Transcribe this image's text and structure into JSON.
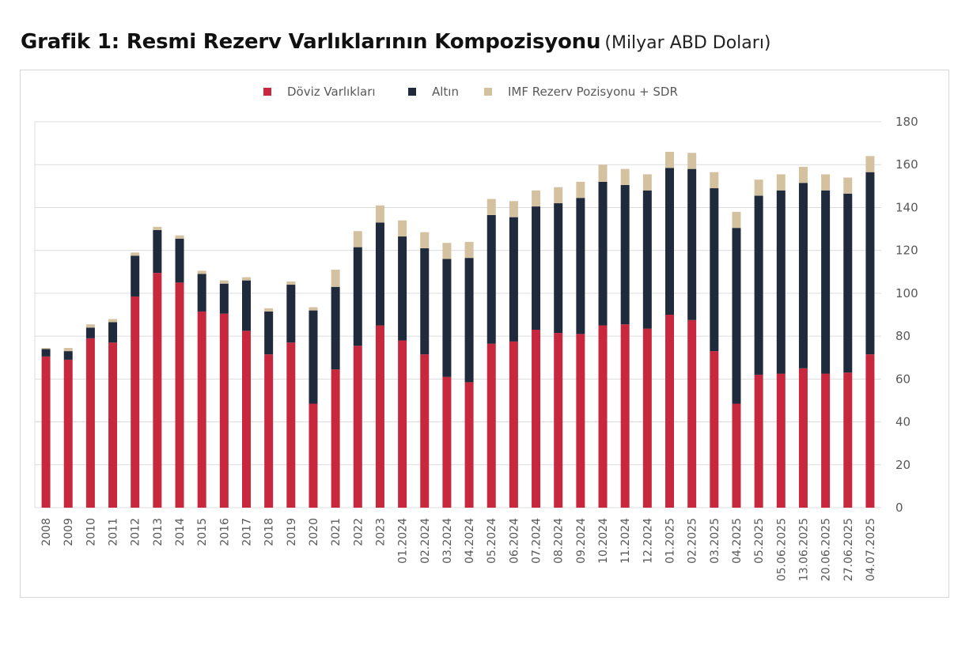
{
  "title": {
    "main": "Grafik 1: Resmi Rezerv Varlıklarının Kompozisyonu",
    "unit": "(Milyar ABD Doları)"
  },
  "chart_data": {
    "type": "bar",
    "stacked": true,
    "title": "Grafik 1: Resmi Rezerv Varlıklarının Kompozisyonu",
    "subtitle": "(Milyar ABD Doları)",
    "y_axis_position": "right",
    "ylim": [
      0,
      180
    ],
    "yticks": [
      0,
      20,
      40,
      60,
      80,
      100,
      120,
      140,
      160,
      180
    ],
    "grid": true,
    "legend_position": "top-center",
    "categories": [
      "2008",
      "2009",
      "2010",
      "2011",
      "2012",
      "2013",
      "2014",
      "2015",
      "2016",
      "2017",
      "2018",
      "2019",
      "2020",
      "2021",
      "2022",
      "2023",
      "01.2024",
      "02.2024",
      "03.2024",
      "04.2024",
      "05.2024",
      "06.2024",
      "07.2024",
      "08.2024",
      "09.2024",
      "10.2024",
      "11.2024",
      "12.2024",
      "01.2025",
      "02.2025",
      "03.2025",
      "04.2025",
      "05.2025",
      "05.06.2025",
      "13.06.2025",
      "20.06.2025",
      "27.06.2025",
      "04.07.2025"
    ],
    "series": [
      {
        "name": "Döviz Varlıkları",
        "color": "#c8283d",
        "values": [
          70.5,
          69,
          79,
          77,
          98.5,
          109.5,
          105,
          91.5,
          90.5,
          82.5,
          71.5,
          77,
          48.5,
          64.5,
          75.5,
          85,
          78,
          71.5,
          61,
          58.5,
          76.5,
          77.5,
          83,
          81.5,
          81,
          85,
          85.5,
          83.5,
          90,
          87.5,
          73,
          48.5,
          62,
          62.5,
          65,
          62.5,
          63,
          71.5
        ]
      },
      {
        "name": "Altın",
        "color": "#1f2a3c",
        "values": [
          3.5,
          4,
          5,
          9.5,
          19,
          20,
          20.5,
          17.5,
          14,
          23.5,
          20,
          27,
          43.5,
          38.5,
          46,
          48,
          48.5,
          49.5,
          55,
          58,
          60,
          58,
          57.5,
          60.5,
          63.5,
          67,
          65,
          64.5,
          68.5,
          70.5,
          76,
          82,
          83.5,
          85.5,
          86.5,
          85.5,
          83.5,
          85
        ]
      },
      {
        "name": "IMF Rezerv Pozisyonu + SDR",
        "color": "#d4c1a0",
        "values": [
          0.5,
          1.5,
          1.5,
          1.5,
          1.5,
          1.5,
          1.5,
          1.5,
          1.5,
          1.5,
          1.5,
          1.5,
          1.5,
          8,
          7.5,
          8,
          7.5,
          7.5,
          7.5,
          7.5,
          7.5,
          7.5,
          7.5,
          7.5,
          7.5,
          8,
          7.5,
          7.5,
          7.5,
          7.5,
          7.5,
          7.5,
          7.5,
          7.5,
          7.5,
          7.5,
          7.5,
          7.5
        ]
      }
    ]
  }
}
